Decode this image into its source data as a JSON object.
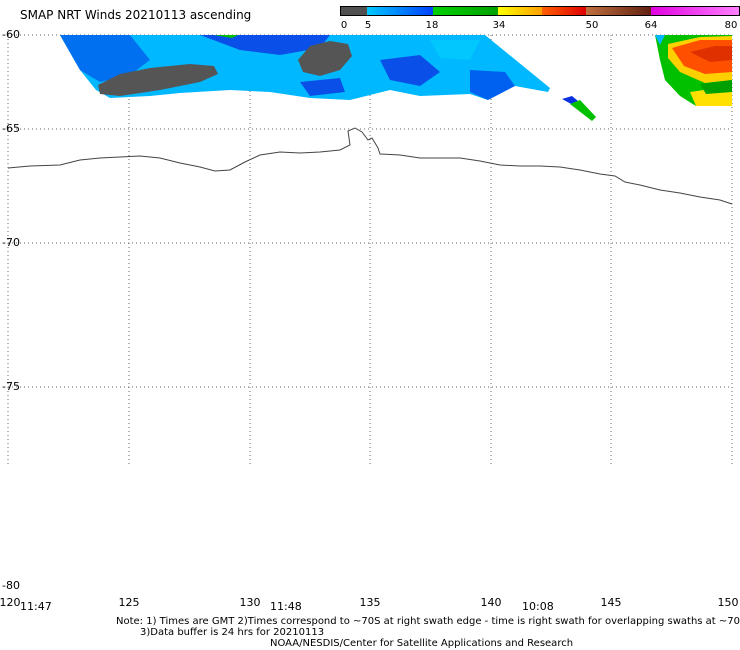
{
  "title": "SMAP NRT Winds 20210113 ascending",
  "legend": {
    "ticks": [
      "0",
      "5",
      "18",
      "34",
      "50",
      "64",
      "80"
    ],
    "colors": [
      "#606060",
      "#00b8ff",
      "#00c000",
      "#ffd800",
      "#e00000",
      "#804020",
      "#e000e0"
    ]
  },
  "latitude_labels": [
    "-60",
    "-65",
    "-70",
    "-75",
    "-80"
  ],
  "longitude_labels": [
    "120",
    "125",
    "130",
    "135",
    "140",
    "145",
    "150"
  ],
  "times": [
    "11:47",
    "11:48",
    "10:08"
  ],
  "notes": {
    "line1": "Note: 1) Times are GMT 2)Times correspond to ~70S at right swath edge - time is right swath for overlapping swaths at ~70S",
    "line2": "3)Data buffer is 24 hrs for 20210113",
    "line3": "NOAA/NESDIS/Center for Satellite Applications and Research"
  }
}
